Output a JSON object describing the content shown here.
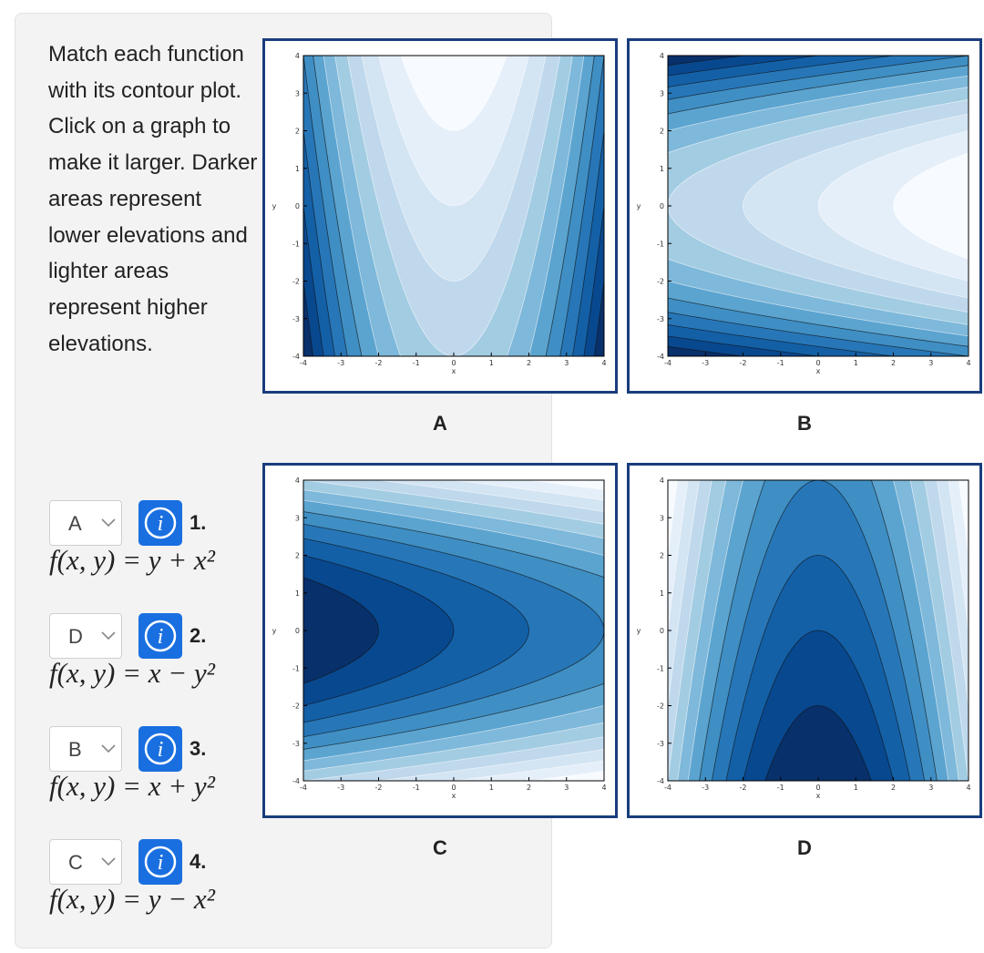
{
  "instructions": "Match each function with its contour plot. Click on a graph to make it larger. Darker areas represent lower elevations and lighter areas represent higher elevations.",
  "plot_axes": {
    "ticks": [
      -4,
      -3,
      -2,
      -1,
      0,
      1,
      2,
      3,
      4
    ],
    "x_label": "x",
    "y_label": "y"
  },
  "plots": [
    {
      "label": "A"
    },
    {
      "label": "B"
    },
    {
      "label": "C"
    },
    {
      "label": "D"
    }
  ],
  "items": [
    {
      "selected": "A",
      "number": "1.",
      "formula": "f(x, y) = y + x²"
    },
    {
      "selected": "D",
      "number": "2.",
      "formula": "f(x, y) = x − y²"
    },
    {
      "selected": "B",
      "number": "3.",
      "formula": "f(x, y) = x + y²"
    },
    {
      "selected": "C",
      "number": "4.",
      "formula": "f(x, y) = y − x²"
    }
  ]
}
